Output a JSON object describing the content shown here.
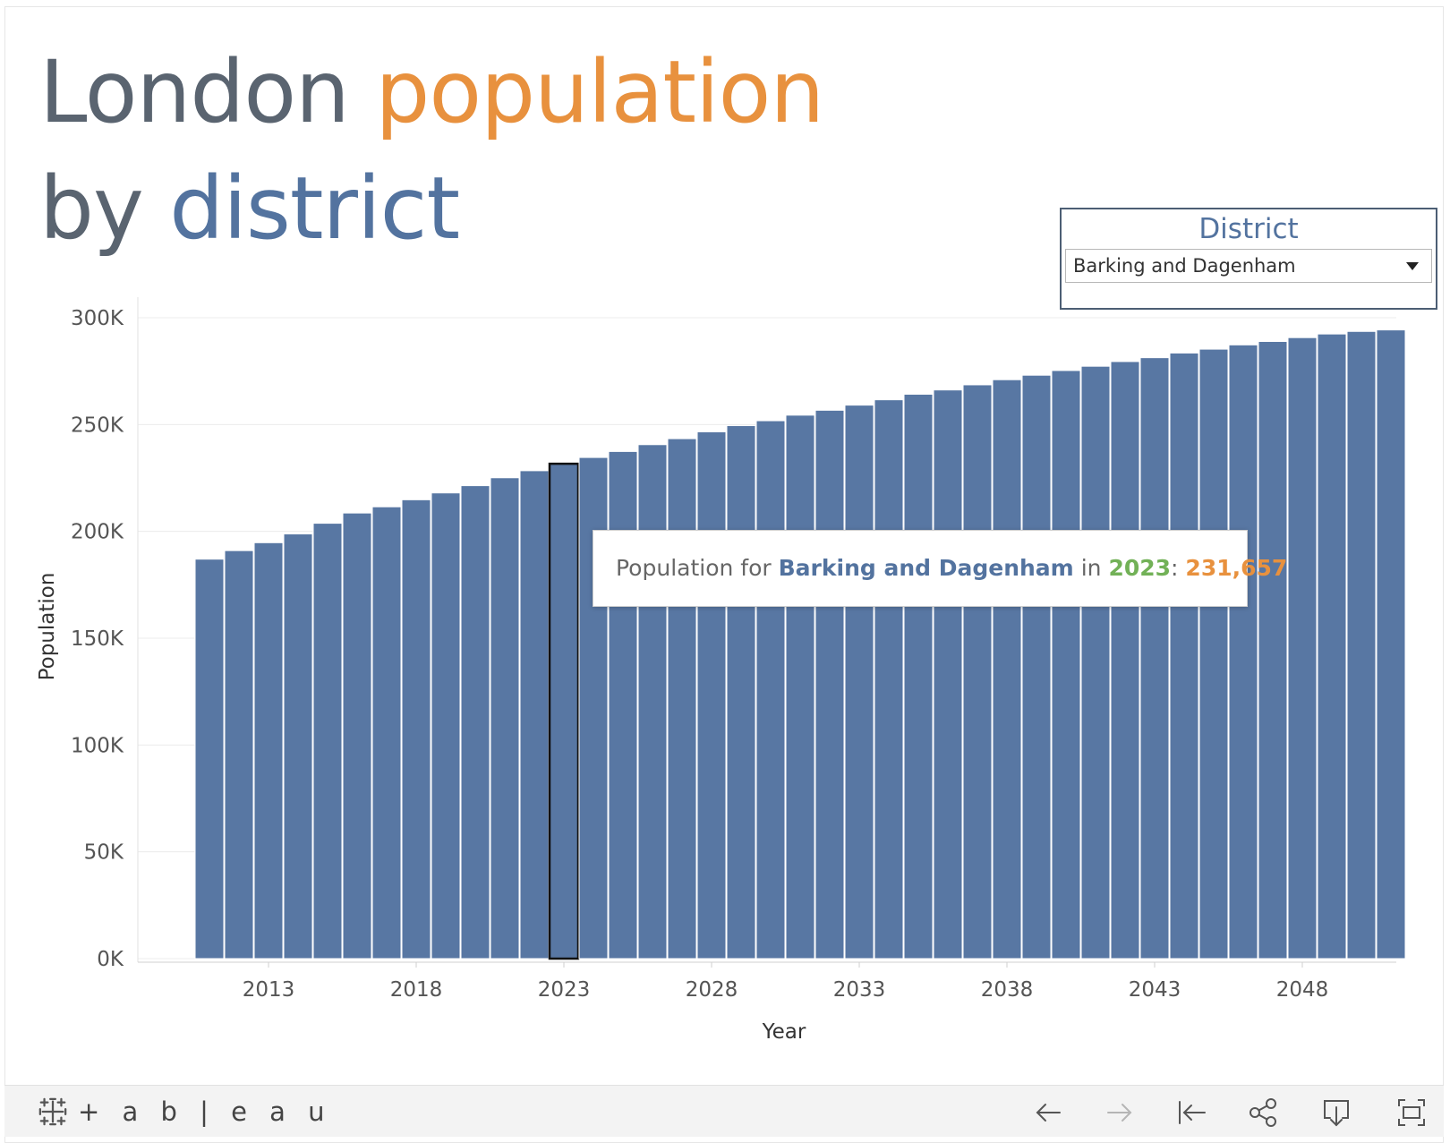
{
  "title": {
    "word1": "London",
    "word2": "population",
    "word3": "by",
    "word4": "district"
  },
  "filter": {
    "title": "District",
    "selected": "Barking and Dagenham"
  },
  "tooltip": {
    "prefix": "Population for",
    "district": "Barking and Dagenham",
    "in": "in",
    "year": "2023",
    "colon": ":",
    "value": "231,657"
  },
  "footer": {
    "logo_text": "+ a b | e a u",
    "buttons": [
      "undo-icon",
      "redo-icon",
      "revert-icon",
      "share-icon",
      "download-icon",
      "fullscreen-icon"
    ]
  },
  "colors": {
    "bar": "#5877a3",
    "title_gray": "#5a6470",
    "title_orange": "#e8913e",
    "title_blue": "#53739f",
    "year_green": "#72b157"
  },
  "chart_data": {
    "type": "bar",
    "xlabel": "Year",
    "ylabel": "Population",
    "ylim": [
      0,
      300000
    ],
    "yticks": [
      0,
      50000,
      100000,
      150000,
      200000,
      250000,
      300000
    ],
    "ytick_labels": [
      "0K",
      "50K",
      "100K",
      "150K",
      "200K",
      "250K",
      "300K"
    ],
    "xticks": [
      2013,
      2018,
      2023,
      2028,
      2033,
      2038,
      2043,
      2048
    ],
    "grid": true,
    "highlighted_year": 2023,
    "categories": [
      2011,
      2012,
      2013,
      2014,
      2015,
      2016,
      2017,
      2018,
      2019,
      2020,
      2021,
      2022,
      2023,
      2024,
      2025,
      2026,
      2027,
      2028,
      2029,
      2030,
      2031,
      2032,
      2033,
      2034,
      2035,
      2036,
      2037,
      2038,
      2039,
      2040,
      2041,
      2042,
      2043,
      2044,
      2045,
      2046,
      2047,
      2048,
      2049,
      2050,
      2051
    ],
    "values": [
      187000,
      191000,
      194700,
      198800,
      203800,
      208600,
      211500,
      214800,
      218000,
      221400,
      225100,
      228400,
      231657,
      234600,
      237400,
      240600,
      243400,
      246600,
      249500,
      251800,
      254400,
      256700,
      259100,
      261600,
      264200,
      266200,
      268600,
      271000,
      273100,
      275300,
      277300,
      279500,
      281300,
      283500,
      285300,
      287300,
      288900,
      290700,
      292400,
      293600,
      294300
    ]
  }
}
